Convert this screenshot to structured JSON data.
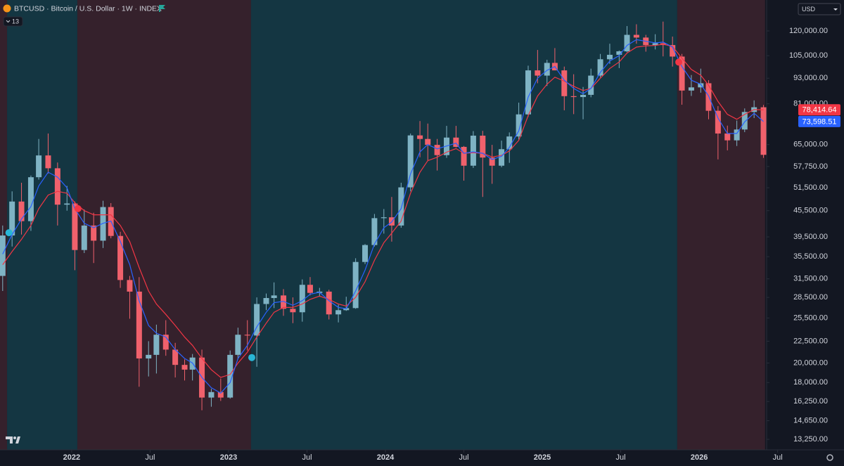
{
  "chart_data": {
    "type": "candlestick",
    "title": "BTCUSD · Bitcoin / U.S. Dollar · 1W · INDEX",
    "study_count": "13",
    "currency": "USD",
    "log_scale": true,
    "grid": false,
    "up_color": "#7fb3c4",
    "down_color": "#f0616c",
    "xlim": [
      2021.543,
      2026.43
    ],
    "ylim": [
      12520,
      141800
    ],
    "xticks": [
      {
        "value": 2022,
        "label": "2022"
      },
      {
        "value": 2022.5,
        "label": "Jul"
      },
      {
        "value": 2023,
        "label": "2023"
      },
      {
        "value": 2023.5,
        "label": "Jul"
      },
      {
        "value": 2024,
        "label": "2024"
      },
      {
        "value": 2024.5,
        "label": "Jul"
      },
      {
        "value": 2025,
        "label": "2025"
      },
      {
        "value": 2025.5,
        "label": "Jul"
      },
      {
        "value": 2026,
        "label": "2026"
      },
      {
        "value": 2026.5,
        "label": "Jul"
      }
    ],
    "yticks": [
      {
        "value": 120000,
        "label": "120,000.00"
      },
      {
        "value": 105000,
        "label": "105,000.00"
      },
      {
        "value": 93000,
        "label": "93,000.00"
      },
      {
        "value": 81000,
        "label": "81,000.00"
      },
      {
        "value": 65000,
        "label": "65,000.00"
      },
      {
        "value": 57750,
        "label": "57,750.00"
      },
      {
        "value": 51500,
        "label": "51,500.00"
      },
      {
        "value": 45500,
        "label": "45,500.00"
      },
      {
        "value": 39500,
        "label": "39,500.00"
      },
      {
        "value": 35500,
        "label": "35,500.00"
      },
      {
        "value": 31500,
        "label": "31,500.00"
      },
      {
        "value": 28500,
        "label": "28,500.00"
      },
      {
        "value": 25500,
        "label": "25,500.00"
      },
      {
        "value": 22500,
        "label": "22,500.00"
      },
      {
        "value": 20000,
        "label": "20,000.00"
      },
      {
        "value": 18000,
        "label": "18,000.00"
      },
      {
        "value": 16250,
        "label": "16,250.00"
      },
      {
        "value": 14650,
        "label": "14,650.00"
      },
      {
        "value": 13250,
        "label": "13,250.00"
      }
    ],
    "regions": [
      {
        "start": 2021.543,
        "end": 2021.588,
        "color": "#35212c"
      },
      {
        "start": 2021.588,
        "end": 2022.036,
        "color": "#143642"
      },
      {
        "start": 2022.036,
        "end": 2023.143,
        "color": "#35212c"
      },
      {
        "start": 2023.143,
        "end": 2025.86,
        "color": "#143642"
      },
      {
        "start": 2025.86,
        "end": 2026.42,
        "color": "#35212c"
      }
    ],
    "markers": [
      {
        "x": 2021.6,
        "y": 40400,
        "color": "#29b6d6"
      },
      {
        "x": 2022.04,
        "y": 46000,
        "color": "#f23645"
      },
      {
        "x": 2023.148,
        "y": 20600,
        "color": "#29b6d6"
      },
      {
        "x": 2025.87,
        "y": 101400,
        "color": "#f23645"
      }
    ],
    "x": [
      2021.56,
      2021.62,
      2021.68,
      2021.74,
      2021.79,
      2021.85,
      2021.91,
      2021.97,
      2022.02,
      2022.08,
      2022.14,
      2022.2,
      2022.25,
      2022.31,
      2022.37,
      2022.43,
      2022.49,
      2022.54,
      2022.6,
      2022.66,
      2022.72,
      2022.77,
      2022.83,
      2022.89,
      2022.95,
      2023.01,
      2023.06,
      2023.12,
      2023.18,
      2023.24,
      2023.29,
      2023.35,
      2023.41,
      2023.47,
      2023.52,
      2023.58,
      2023.64,
      2023.7,
      2023.75,
      2023.81,
      2023.87,
      2023.93,
      2023.99,
      2024.04,
      2024.1,
      2024.16,
      2024.22,
      2024.27,
      2024.33,
      2024.39,
      2024.45,
      2024.5,
      2024.56,
      2024.62,
      2024.68,
      2024.74,
      2024.79,
      2024.85,
      2024.91,
      2024.97,
      2025.03,
      2025.08,
      2025.14,
      2025.2,
      2025.26,
      2025.31,
      2025.37,
      2025.43,
      2025.49,
      2025.54,
      2025.6,
      2025.66,
      2025.72,
      2025.77,
      2025.83,
      2025.89,
      2025.95,
      2026.01,
      2026.06,
      2026.12,
      2026.18,
      2026.24,
      2026.29,
      2026.35,
      2026.41
    ],
    "ohlc": [
      [
        32000,
        42000,
        29500,
        39800
      ],
      [
        39800,
        50500,
        37500,
        47800
      ],
      [
        47800,
        52900,
        40000,
        43000
      ],
      [
        43000,
        55000,
        40800,
        54500
      ],
      [
        54500,
        67000,
        53800,
        61300
      ],
      [
        61300,
        69000,
        55600,
        57200
      ],
      [
        57200,
        59000,
        42000,
        47000
      ],
      [
        47000,
        52000,
        45500,
        47300
      ],
      [
        47300,
        47800,
        33000,
        36800
      ],
      [
        36800,
        45800,
        36200,
        42000
      ],
      [
        42000,
        45000,
        34300,
        38700
      ],
      [
        38700,
        48000,
        37200,
        46400
      ],
      [
        46400,
        47400,
        39200,
        39700
      ],
      [
        39700,
        40600,
        30000,
        31300
      ],
      [
        31300,
        32000,
        25400,
        29400
      ],
      [
        29400,
        31800,
        17600,
        20500
      ],
      [
        20500,
        22500,
        18600,
        20900
      ],
      [
        20900,
        24600,
        18900,
        23300
      ],
      [
        23300,
        25200,
        20800,
        21500
      ],
      [
        21500,
        22300,
        18500,
        19800
      ],
      [
        19800,
        20400,
        18200,
        19300
      ],
      [
        19300,
        21000,
        18200,
        20600
      ],
      [
        20600,
        21500,
        15500,
        16600
      ],
      [
        16600,
        17400,
        15800,
        17100
      ],
      [
        17100,
        18400,
        16300,
        16600
      ],
      [
        16600,
        21400,
        16500,
        20900
      ],
      [
        20900,
        24200,
        20400,
        23300
      ],
      [
        23300,
        25200,
        21400,
        23200
      ],
      [
        23200,
        28500,
        19600,
        27500
      ],
      [
        27500,
        29100,
        26600,
        28400
      ],
      [
        28400,
        30900,
        26900,
        28800
      ],
      [
        28800,
        29800,
        25800,
        26800
      ],
      [
        26800,
        28500,
        24800,
        26300
      ],
      [
        26300,
        31400,
        25000,
        30500
      ],
      [
        30500,
        31800,
        28800,
        29200
      ],
      [
        29200,
        30000,
        28600,
        29400
      ],
      [
        29400,
        29700,
        25300,
        26000
      ],
      [
        26000,
        27400,
        24900,
        26600
      ],
      [
        26600,
        28600,
        26500,
        26900
      ],
      [
        26900,
        35200,
        26800,
        34500
      ],
      [
        34500,
        38000,
        34100,
        37800
      ],
      [
        37800,
        44700,
        37500,
        43700
      ],
      [
        43700,
        45900,
        40200,
        43900
      ],
      [
        43900,
        49000,
        38500,
        42000
      ],
      [
        42000,
        52900,
        41500,
        51600
      ],
      [
        51600,
        69000,
        50500,
        68300
      ],
      [
        68300,
        73800,
        60700,
        67000
      ],
      [
        67000,
        72800,
        59700,
        64900
      ],
      [
        64900,
        67000,
        56500,
        61400
      ],
      [
        61400,
        71900,
        60500,
        67500
      ],
      [
        67500,
        71900,
        64000,
        64200
      ],
      [
        64200,
        64500,
        53500,
        58000
      ],
      [
        58000,
        69900,
        57300,
        68200
      ],
      [
        68200,
        70000,
        49000,
        60600
      ],
      [
        60600,
        64900,
        52600,
        58000
      ],
      [
        58000,
        66400,
        57500,
        63400
      ],
      [
        63400,
        69400,
        58900,
        67900
      ],
      [
        67900,
        81500,
        66800,
        76500
      ],
      [
        76500,
        99500,
        75500,
        97000
      ],
      [
        97000,
        108300,
        90500,
        94300
      ],
      [
        94300,
        102700,
        89200,
        101000
      ],
      [
        101000,
        109400,
        97700,
        97000
      ],
      [
        97000,
        99000,
        78200,
        84400
      ],
      [
        84400,
        95000,
        76600,
        84000
      ],
      [
        84000,
        88700,
        74500,
        85000
      ],
      [
        85000,
        97900,
        83900,
        94300
      ],
      [
        94300,
        106000,
        93400,
        103000
      ],
      [
        103000,
        112000,
        100500,
        105500
      ],
      [
        105500,
        108000,
        98200,
        107500
      ],
      [
        107500,
        123200,
        107000,
        117500
      ],
      [
        117500,
        124400,
        112000,
        115800
      ],
      [
        115800,
        117500,
        107300,
        111200
      ],
      [
        111200,
        117900,
        108600,
        112300
      ],
      [
        112300,
        126200,
        104600,
        111200
      ],
      [
        111200,
        116400,
        99000,
        104500
      ],
      [
        104500,
        106000,
        80600,
        87000
      ],
      [
        87000,
        94600,
        84500,
        88500
      ],
      [
        88500,
        97900,
        86000,
        90500
      ],
      [
        90500,
        92000,
        74500,
        78000
      ],
      [
        78000,
        80000,
        60000,
        69000
      ],
      [
        69000,
        72000,
        63000,
        66500
      ],
      [
        66500,
        74000,
        64500,
        70500
      ],
      [
        70500,
        79000,
        69500,
        77500
      ],
      [
        77500,
        82500,
        75000,
        79500
      ],
      [
        79500,
        80500,
        60500,
        61500
      ]
    ],
    "series": [
      {
        "color": "#f23645",
        "last_value": {
          "value": 78414.64,
          "label": "78,414.64"
        },
        "values": [
          34000,
          36500,
          39000,
          42000,
          46000,
          49500,
          50500,
          50000,
          47500,
          45500,
          44500,
          44500,
          44500,
          42000,
          38500,
          33500,
          29500,
          27500,
          26000,
          24500,
          23000,
          22000,
          20500,
          19300,
          18500,
          18800,
          20000,
          21200,
          23000,
          24800,
          26300,
          27000,
          27000,
          27500,
          28200,
          28700,
          28200,
          27500,
          27200,
          28500,
          31000,
          34800,
          38300,
          40300,
          43000,
          50000,
          56000,
          59600,
          60700,
          62400,
          63600,
          62000,
          62200,
          62000,
          60800,
          61300,
          62800,
          66500,
          76000,
          84500,
          90000,
          93500,
          91500,
          89000,
          87000,
          88000,
          93000,
          98000,
          101500,
          106500,
          110000,
          110700,
          111000,
          111700,
          110400,
          103500,
          97500,
          94500,
          89500,
          82000,
          76500,
          74500,
          76500,
          78500,
          78400
        ]
      },
      {
        "color": "#2962ff",
        "last_value": {
          "value": 73598.51,
          "label": "73,598.51"
        },
        "values": [
          36000,
          40000,
          43500,
          46500,
          52000,
          56000,
          54500,
          51500,
          46000,
          42500,
          41500,
          42500,
          43000,
          38500,
          34000,
          28000,
          24500,
          23500,
          23000,
          21500,
          20500,
          20000,
          18500,
          17500,
          17000,
          18000,
          20500,
          22000,
          24300,
          26300,
          27700,
          27900,
          27300,
          28000,
          29000,
          29300,
          28000,
          27000,
          26800,
          29500,
          33000,
          38000,
          41500,
          42800,
          46000,
          55500,
          62500,
          65000,
          63500,
          64500,
          65500,
          62000,
          62500,
          62000,
          60000,
          61000,
          64000,
          70000,
          84000,
          93000,
          97000,
          99000,
          92000,
          88000,
          85500,
          88000,
          96000,
          102000,
          105000,
          111000,
          114500,
          113500,
          112500,
          113000,
          110000,
          99000,
          92000,
          90000,
          84500,
          75000,
          69000,
          69000,
          73500,
          77000,
          73600
        ]
      }
    ]
  }
}
